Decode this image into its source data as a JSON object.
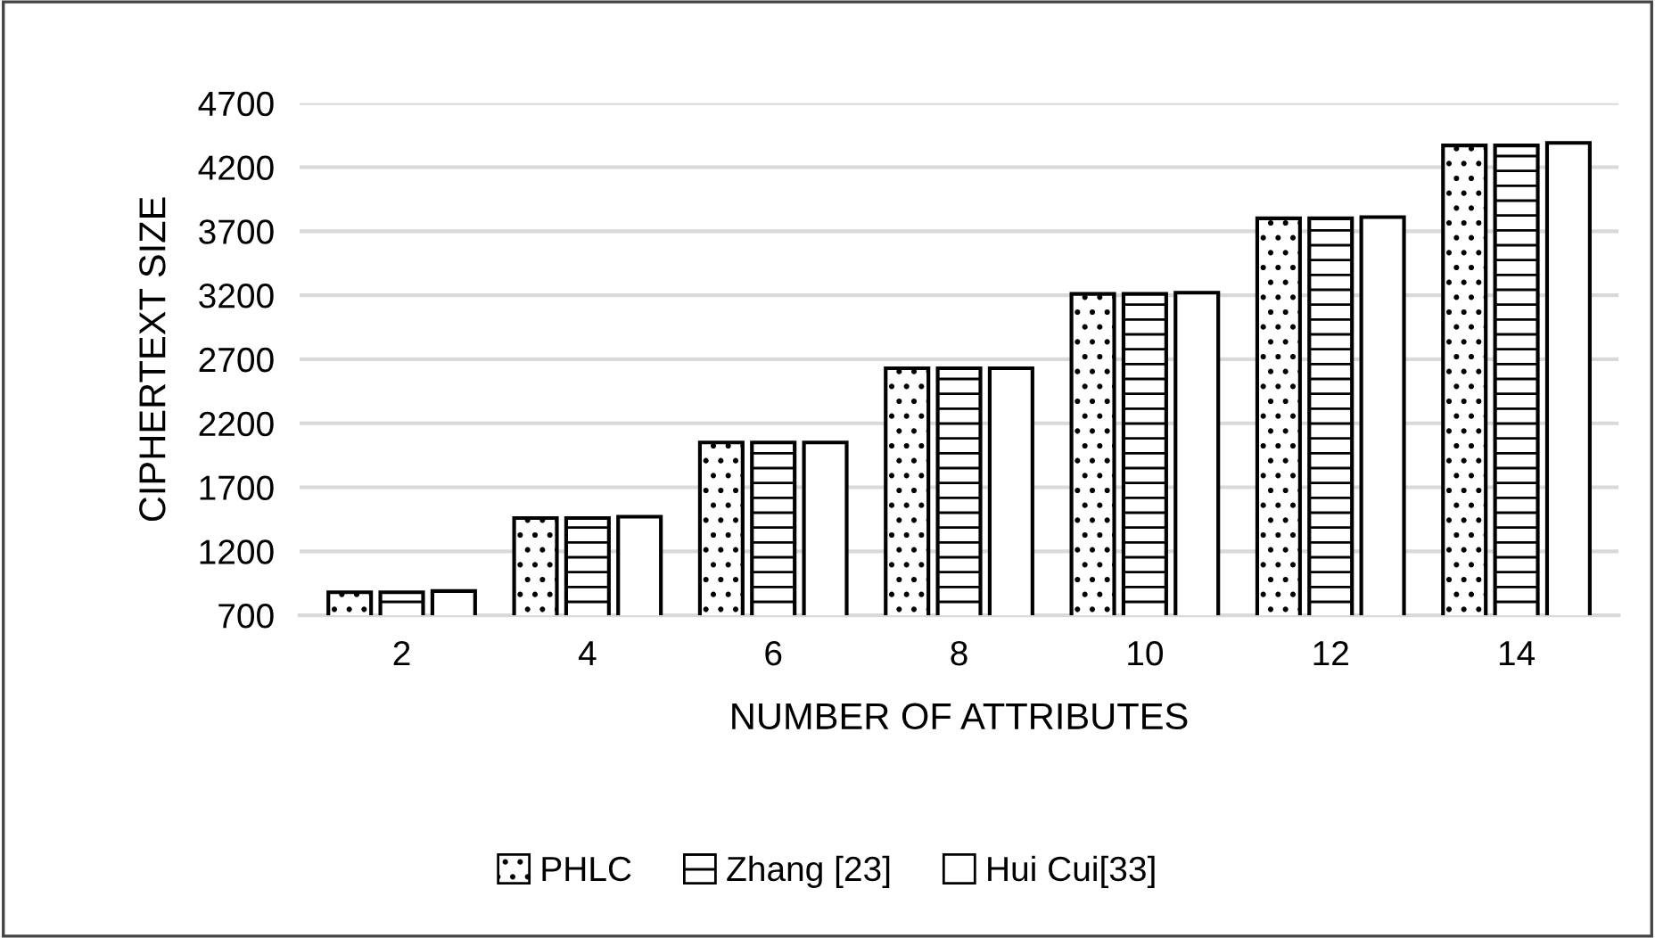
{
  "chart_data": {
    "type": "bar",
    "xlabel": "NUMBER OF ATTRIBUTES",
    "ylabel": "CIPHERTEXT SIZE",
    "categories": [
      "2",
      "4",
      "6",
      "8",
      "10",
      "12",
      "14"
    ],
    "series": [
      {
        "name": "PHLC",
        "color": "#000000",
        "values": [
          880,
          1460,
          2050,
          2630,
          3210,
          3800,
          4370
        ]
      },
      {
        "name": "Zhang [23]",
        "color": "#000000",
        "values": [
          880,
          1460,
          2050,
          2630,
          3210,
          3800,
          4370
        ]
      },
      {
        "name": "Hui Cui[33]",
        "color": "#000000",
        "values": [
          890,
          1470,
          2050,
          2630,
          3220,
          3810,
          4390
        ]
      }
    ],
    "ylim": [
      700,
      4700
    ],
    "yticks": [
      700,
      1200,
      1700,
      2200,
      2700,
      3200,
      3700,
      4200,
      4700
    ],
    "grid": "y",
    "legend": "bottom"
  }
}
